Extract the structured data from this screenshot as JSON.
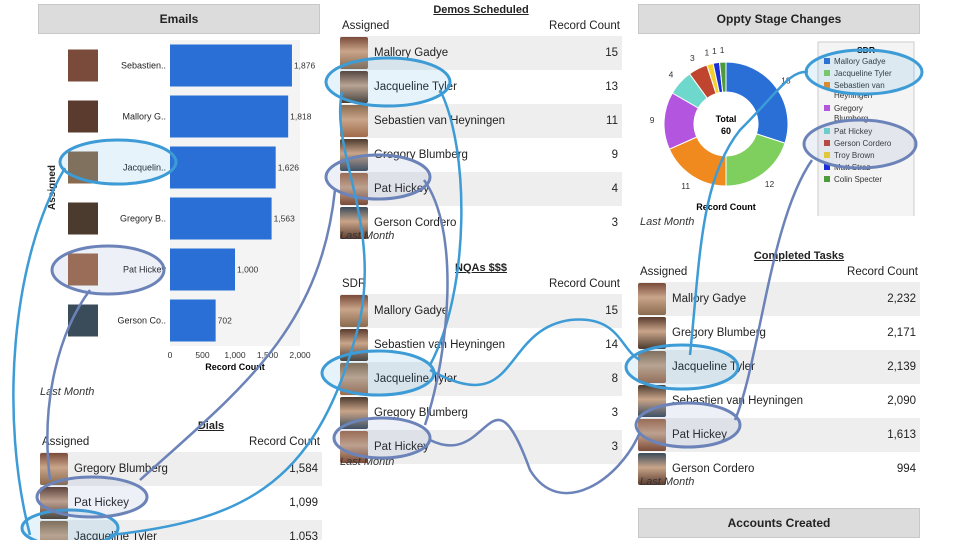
{
  "emails": {
    "title": "Emails",
    "ylabel": "Assigned",
    "xlabel": "Record Count",
    "footer": "Last Month",
    "chart_data": {
      "type": "bar",
      "orientation": "horizontal",
      "categories": [
        "Sebastien..",
        "Mallory G..",
        "Jacquelin..",
        "Gregory B..",
        "Pat Hickey",
        "Gerson Co.."
      ],
      "values": [
        1876,
        1818,
        1626,
        1563,
        1000,
        702
      ],
      "value_labels": [
        "1,876",
        "1,818",
        "1,626",
        "1,563",
        "1,000",
        "702"
      ],
      "xticks": [
        "0",
        "500",
        "1,000",
        "1,500",
        "2,000"
      ],
      "xlim": [
        0,
        2000
      ],
      "color": "#2a6fd6"
    }
  },
  "demos": {
    "title": "Demos Scheduled",
    "col1": "Assigned",
    "col2": "Record Count",
    "footer": "Last Month",
    "rows": [
      {
        "name": "Mallory Gadye",
        "count": "15"
      },
      {
        "name": "Jacqueline Tyler",
        "count": "13"
      },
      {
        "name": "Sebastien van Heyningen",
        "count": "11"
      },
      {
        "name": "Gregory Blumberg",
        "count": "9"
      },
      {
        "name": "Pat Hickey",
        "count": "4"
      },
      {
        "name": "Gerson Cordero",
        "count": "3"
      }
    ]
  },
  "nqas": {
    "title": "NQAs $$$",
    "col1": "SDR",
    "col2": "Record Count",
    "footer": "Last Month",
    "rows": [
      {
        "name": "Mallory Gadye",
        "count": "15"
      },
      {
        "name": "Sebastien van Heyningen",
        "count": "14"
      },
      {
        "name": "Jacqueline Tyler",
        "count": "8"
      },
      {
        "name": "Gregory Blumberg",
        "count": "3"
      },
      {
        "name": "Pat Hickey",
        "count": "3"
      }
    ]
  },
  "dials": {
    "title": "Dials",
    "col1": "Assigned",
    "col2": "Record Count",
    "rows": [
      {
        "name": "Gregory Blumberg",
        "count": "1,584"
      },
      {
        "name": "Pat Hickey",
        "count": "1,099"
      },
      {
        "name": "Jacqueline Tyler",
        "count": "1,053"
      }
    ]
  },
  "oppty": {
    "title": "Oppty Stage Changes",
    "legend_title": "SDR",
    "center_label": "Total",
    "center_value": "60",
    "xlabel": "Record Count",
    "footer": "Last Month",
    "chart_data": {
      "type": "pie",
      "donut": true,
      "slices": [
        {
          "name": "Mallory Gadye",
          "value": 18,
          "color": "#2a6fd6"
        },
        {
          "name": "Jacqueline Tyler",
          "value": 12,
          "color": "#7fcf5f"
        },
        {
          "name": "Sebastien van Heyningen",
          "value": 11,
          "color": "#f08a1e"
        },
        {
          "name": "Gregory Blumberg",
          "value": 9,
          "color": "#b455e0"
        },
        {
          "name": "Pat Hickey",
          "value": 4,
          "color": "#6fd8cc"
        },
        {
          "name": "Gerson Cordero",
          "value": 3,
          "color": "#c0452f"
        },
        {
          "name": "Troy Brown",
          "value": 1,
          "color": "#f2d22a"
        },
        {
          "name": "Matt Straz",
          "value": 1,
          "color": "#1b2fd8"
        },
        {
          "name": "Colin Specter",
          "value": 1,
          "color": "#4d9b3a"
        }
      ],
      "slice_labels": [
        "18",
        "12",
        "11",
        "9",
        "4",
        "3",
        "1",
        "1",
        "1"
      ]
    }
  },
  "completed": {
    "title": "Completed Tasks",
    "col1": "Assigned",
    "col2": "Record Count",
    "footer": "Last Month",
    "rows": [
      {
        "name": "Mallory Gadye",
        "count": "2,232"
      },
      {
        "name": "Gregory Blumberg",
        "count": "2,171"
      },
      {
        "name": "Jacqueline Tyler",
        "count": "2,139"
      },
      {
        "name": "Sebastien van Heyningen",
        "count": "2,090"
      },
      {
        "name": "Pat Hickey",
        "count": "1,613"
      },
      {
        "name": "Gerson Cordero",
        "count": "994"
      }
    ]
  },
  "accounts": {
    "title": "Accounts Created"
  },
  "colors": {
    "highlight": "#3d9bd6",
    "highlight_dark": "#6b83b8",
    "bar": "#2a6fd6"
  }
}
